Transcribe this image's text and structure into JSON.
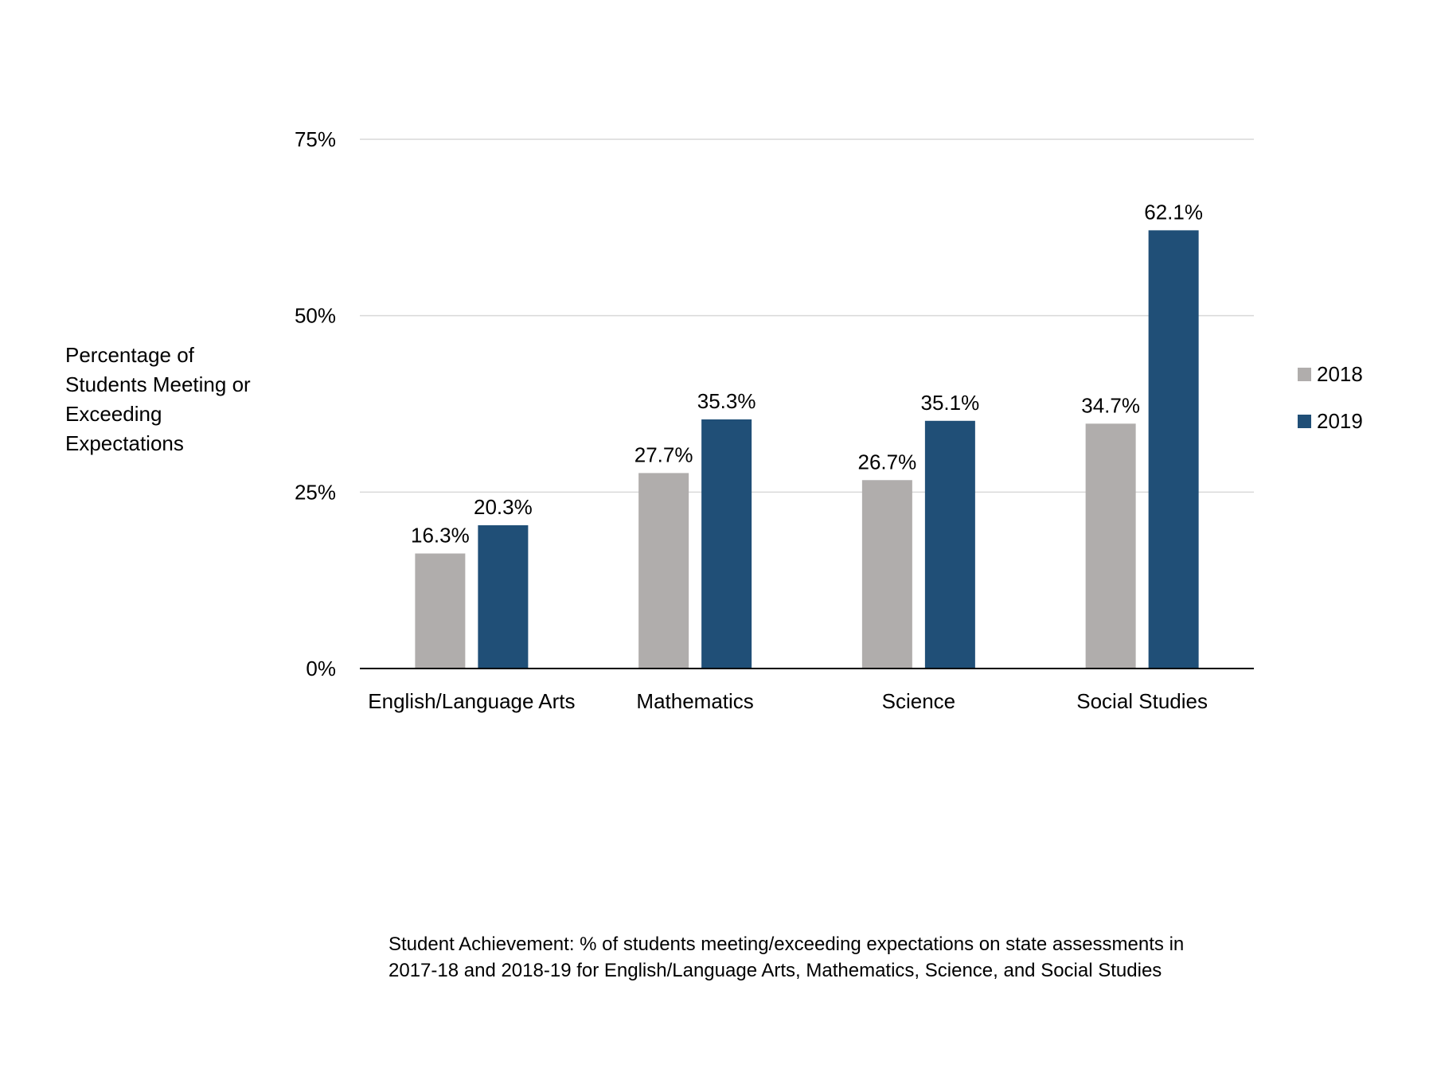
{
  "chart_data": {
    "type": "bar",
    "categories": [
      "English/Language Arts",
      "Mathematics",
      "Science",
      "Social Studies"
    ],
    "series": [
      {
        "name": "2018",
        "values": [
          16.3,
          27.7,
          26.7,
          34.7
        ],
        "labels": [
          "16.3%",
          "27.7%",
          "26.7%",
          "34.7%"
        ],
        "color": "#b0adac"
      },
      {
        "name": "2019",
        "values": [
          20.3,
          35.3,
          35.1,
          62.1
        ],
        "labels": [
          "20.3%",
          "35.3%",
          "35.1%",
          "62.1%"
        ],
        "color": "#204f77"
      }
    ],
    "ylabel": "Percentage of Students Meeting or Exceeding Expectations",
    "xlabel": "",
    "ylim": [
      0,
      75
    ],
    "yticks": [
      0,
      25,
      50,
      75
    ],
    "ytick_labels": [
      "0%",
      "25%",
      "50%",
      "75%"
    ],
    "grid": true,
    "legend_position": "right",
    "caption": "Student Achievement: % of students meeting/exceeding expectations on state assessments in 2017-18 and 2018-19 for English/Language Arts, Mathematics, Science, and Social Studies"
  },
  "colors": {
    "gridline": "#d9d9d9",
    "axis": "#000000"
  }
}
